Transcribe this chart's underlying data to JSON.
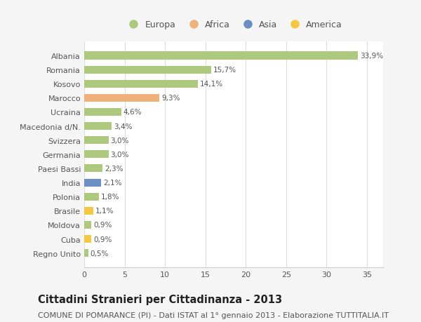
{
  "categories": [
    "Albania",
    "Romania",
    "Kosovo",
    "Marocco",
    "Ucraina",
    "Macedonia d/N.",
    "Svizzera",
    "Germania",
    "Paesi Bassi",
    "India",
    "Polonia",
    "Brasile",
    "Moldova",
    "Cuba",
    "Regno Unito"
  ],
  "values": [
    33.9,
    15.7,
    14.1,
    9.3,
    4.6,
    3.4,
    3.0,
    3.0,
    2.3,
    2.1,
    1.8,
    1.1,
    0.9,
    0.9,
    0.5
  ],
  "labels": [
    "33,9%",
    "15,7%",
    "14,1%",
    "9,3%",
    "4,6%",
    "3,4%",
    "3,0%",
    "3,0%",
    "2,3%",
    "2,1%",
    "1,8%",
    "1,1%",
    "0,9%",
    "0,9%",
    "0,5%"
  ],
  "bar_colors": [
    "#adc97e",
    "#adc97e",
    "#adc97e",
    "#f0b27a",
    "#adc97e",
    "#adc97e",
    "#adc97e",
    "#adc97e",
    "#adc97e",
    "#6b8ec4",
    "#adc97e",
    "#f5c842",
    "#adc97e",
    "#f5c842",
    "#adc97e"
  ],
  "continent_colors": {
    "Europa": "#adc97e",
    "Africa": "#f0b27a",
    "Asia": "#6b8ec4",
    "America": "#f5c842"
  },
  "legend_labels": [
    "Europa",
    "Africa",
    "Asia",
    "America"
  ],
  "xlim": [
    0,
    37
  ],
  "xticks": [
    0,
    5,
    10,
    15,
    20,
    25,
    30,
    35
  ],
  "title": "Cittadini Stranieri per Cittadinanza - 2013",
  "subtitle": "COMUNE DI POMARANCE (PI) - Dati ISTAT al 1° gennaio 2013 - Elaborazione TUTTITALIA.IT",
  "outer_bg": "#f5f5f5",
  "plot_bg": "#ffffff",
  "bar_height": 0.55,
  "grid_color": "#dddddd",
  "title_fontsize": 10.5,
  "subtitle_fontsize": 8,
  "label_fontsize": 7.5,
  "tick_fontsize": 8,
  "legend_fontsize": 9
}
